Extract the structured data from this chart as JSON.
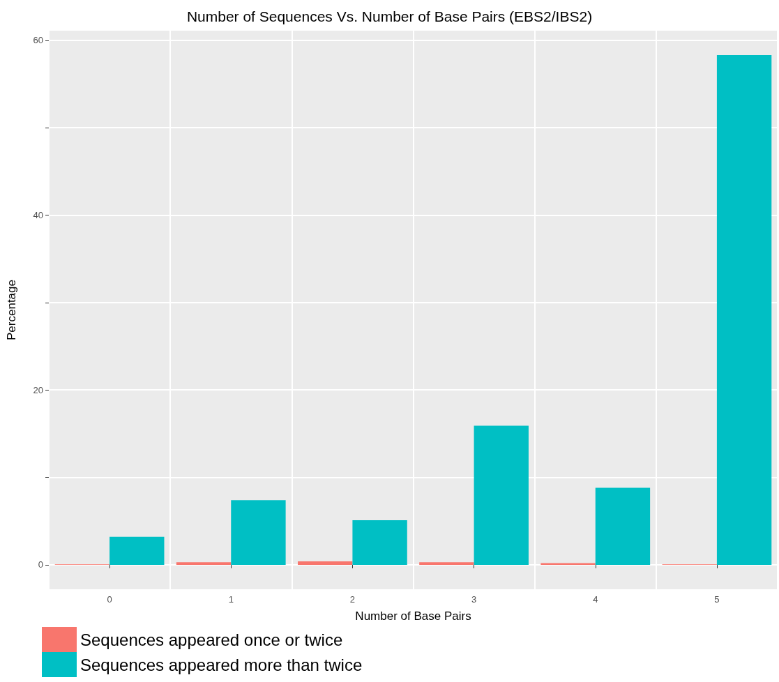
{
  "chart_data": {
    "type": "bar",
    "title": "Number of Sequences Vs. Number of Base Pairs (EBS2/IBS2)",
    "xlabel": "Number of Base Pairs",
    "ylabel": "Percentage",
    "categories": [
      "0",
      "1",
      "2",
      "3",
      "4",
      "5"
    ],
    "series": [
      {
        "name": "Sequences appeared once or twice",
        "color": "#f8766d",
        "values": [
          0.05,
          0.3,
          0.4,
          0.3,
          0.2,
          0.05
        ]
      },
      {
        "name": "Sequences appeared more than twice",
        "color": "#00bfc4",
        "values": [
          3.2,
          7.4,
          5.1,
          15.9,
          8.8,
          58.3
        ]
      }
    ],
    "ylim": [
      -2.8,
      61.1
    ],
    "yticks": [
      0,
      {
        "value": 10,
        "label": null
      },
      20,
      {
        "value": 30,
        "label": null
      },
      40,
      {
        "value": 50,
        "label": null
      },
      60
    ],
    "grid": true,
    "legend": "bottom left"
  }
}
